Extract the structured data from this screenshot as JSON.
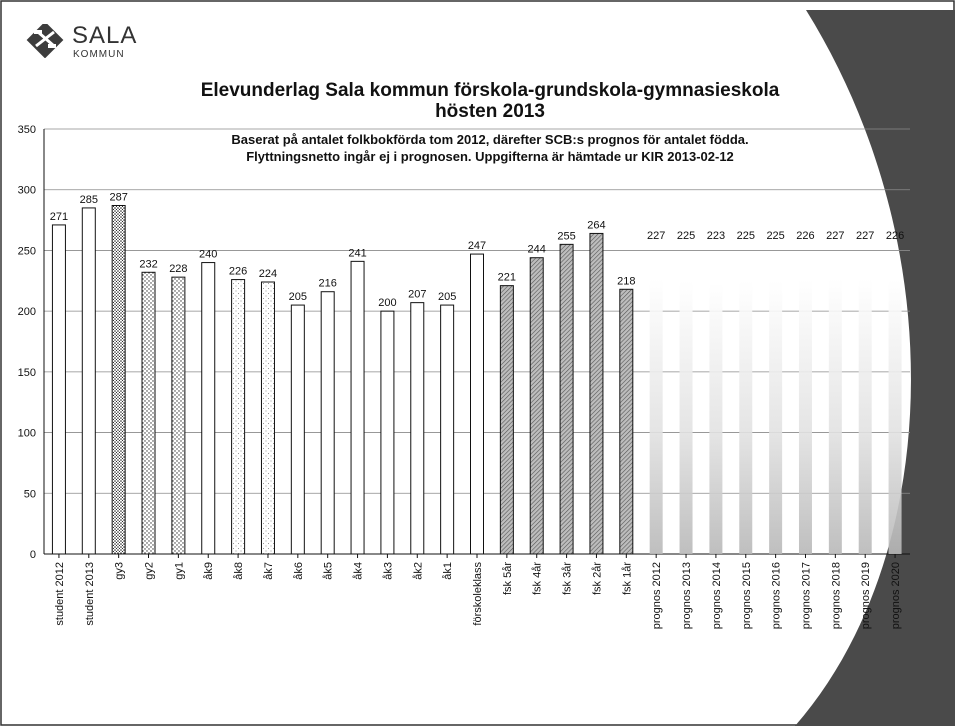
{
  "logo": {
    "title": "SALA",
    "subtitle": "KOMMUN"
  },
  "chart_data": {
    "type": "bar",
    "title": "Elevunderlag Sala kommun förskola-grundskola-gymnasieskola hösten 2013",
    "title_lines": [
      "Elevunderlag Sala kommun förskola-grundskola-gymnasieskola",
      "hösten 2013"
    ],
    "subtitle_lines": [
      "Baserat på antalet folkbokförda tom 2012, därefter SCB:s prognos för antalet födda.",
      "Flyttningsnetto ingår ej i prognosen. Uppgifterna är hämtade ur  KIR 2013-02-12"
    ],
    "xlabel": "",
    "ylabel": "",
    "ylim": [
      0,
      350
    ],
    "yticks": [
      0,
      50,
      100,
      150,
      200,
      250,
      300,
      350
    ],
    "grid": true,
    "legend": "none",
    "categories": [
      "student 2012",
      "student 2013",
      "gy3",
      "gy2",
      "gy1",
      "åk9",
      "åk8",
      "åk7",
      "åk6",
      "åk5",
      "åk4",
      "åk3",
      "åk2",
      "åk1",
      "förskoleklass",
      "fsk 5år",
      "fsk 4år",
      "fsk 3år",
      "fsk 2år",
      "fsk 1år",
      "prognos 2012",
      "prognos 2013",
      "prognos 2014",
      "prognos 2015",
      "prognos 2016",
      "prognos 2017",
      "prognos 2018",
      "prognos 2019",
      "prognos 2020"
    ],
    "values": [
      271,
      285,
      287,
      232,
      228,
      240,
      226,
      224,
      205,
      216,
      241,
      200,
      207,
      205,
      247,
      221,
      244,
      255,
      264,
      218,
      227,
      225,
      223,
      225,
      225,
      226,
      227,
      227,
      226
    ],
    "bar_styles": [
      "white",
      "white",
      "dots-dense",
      "dots",
      "dots",
      "white",
      "dots-light",
      "dots-light",
      "white",
      "white",
      "white",
      "white",
      "white",
      "white",
      "white",
      "hatch",
      "hatch",
      "hatch",
      "hatch",
      "hatch",
      "faded",
      "faded",
      "faded",
      "faded",
      "faded",
      "faded",
      "faded",
      "faded",
      "faded"
    ],
    "colors": {
      "bar_stroke": "#111111",
      "hatch_fill": "#9a9a9a",
      "faded_fill": "#c8c8c8",
      "grid": "#8a8a8a",
      "shadow": "#4a4a4a"
    }
  }
}
